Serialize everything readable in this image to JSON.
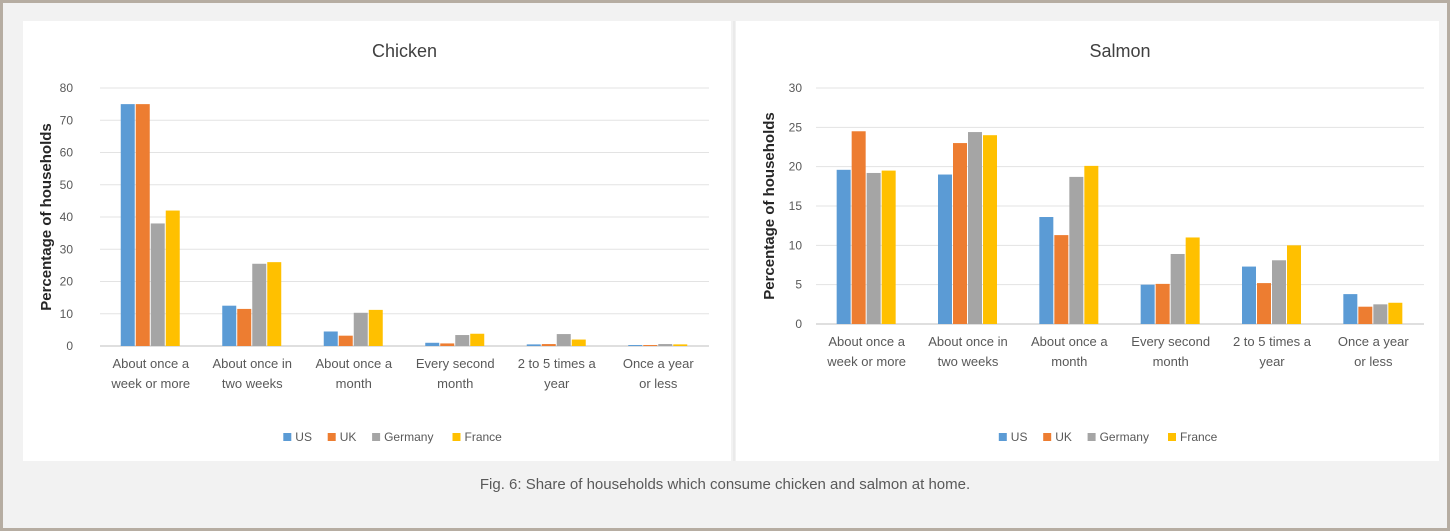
{
  "caption": "Fig. 6: Share of households which consume chicken and salmon at home.",
  "colors": {
    "US": "#5b9bd5",
    "UK": "#ed7d31",
    "Germany": "#a5a5a5",
    "France": "#ffc000"
  },
  "chart_data": [
    {
      "type": "bar",
      "title": "Chicken",
      "ylabel": "Percentage of households",
      "xlabel": "",
      "ylim": [
        0,
        80
      ],
      "yticks": [
        "0",
        "10",
        "20",
        "30",
        "40",
        "50",
        "60",
        "70",
        "80"
      ],
      "grid": true,
      "legend_position": "bottom",
      "categories": [
        [
          "About once a",
          "week or more"
        ],
        [
          "About once in",
          "two weeks"
        ],
        [
          "About once a",
          "month"
        ],
        [
          "Every second",
          "month"
        ],
        [
          "2 to 5 times a",
          "year"
        ],
        [
          "Once a year",
          "or less"
        ]
      ],
      "series": [
        {
          "name": "US",
          "values": [
            75,
            12.5,
            4.5,
            1,
            0.5,
            0.3
          ]
        },
        {
          "name": "UK",
          "values": [
            75,
            11.5,
            3.2,
            0.8,
            0.6,
            0.3
          ]
        },
        {
          "name": "Germany",
          "values": [
            38,
            25.5,
            10.3,
            3.4,
            3.7,
            0.6
          ]
        },
        {
          "name": "France",
          "values": [
            42,
            26,
            11.2,
            3.8,
            2,
            0.5
          ]
        }
      ]
    },
    {
      "type": "bar",
      "title": "Salmon",
      "ylabel": "Percentage of households",
      "xlabel": "",
      "ylim": [
        0,
        30
      ],
      "yticks": [
        "0",
        "5",
        "10",
        "15",
        "20",
        "25",
        "30"
      ],
      "grid": true,
      "legend_position": "bottom",
      "categories": [
        [
          "About once a",
          "week or more"
        ],
        [
          "About once in",
          "two weeks"
        ],
        [
          "About once a",
          "month"
        ],
        [
          "Every second",
          "month"
        ],
        [
          "2 to 5 times a",
          "year"
        ],
        [
          "Once a year",
          "or less"
        ]
      ],
      "series": [
        {
          "name": "US",
          "values": [
            19.6,
            19,
            13.6,
            5,
            7.3,
            3.8
          ]
        },
        {
          "name": "UK",
          "values": [
            24.5,
            23,
            11.3,
            5.1,
            5.2,
            2.2
          ]
        },
        {
          "name": "Germany",
          "values": [
            19.2,
            24.4,
            18.7,
            8.9,
            8.1,
            2.5
          ]
        },
        {
          "name": "France",
          "values": [
            19.5,
            24,
            20.1,
            11,
            10,
            2.7
          ]
        }
      ]
    }
  ]
}
